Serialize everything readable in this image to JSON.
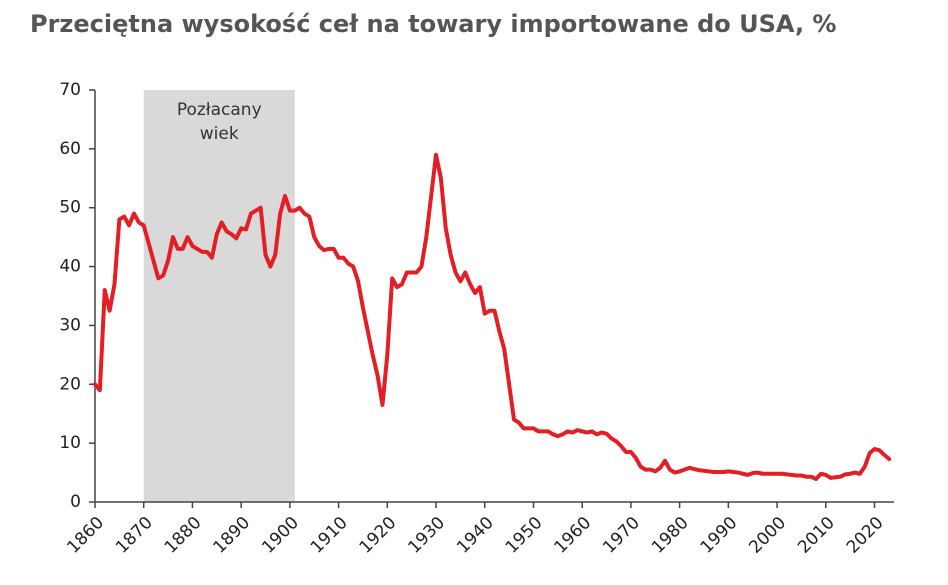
{
  "chart_data": {
    "type": "line",
    "title": "Przeciętna wysokość ceł na towary importowane do USA, %",
    "color": "#e31e24",
    "shaded_region": {
      "label": "Pozłacany wiek",
      "x": [
        1870,
        1901
      ],
      "color": "#d9d9d9"
    },
    "x": [
      1860,
      1861,
      1862,
      1863,
      1864,
      1865,
      1866,
      1867,
      1868,
      1869,
      1870,
      1871,
      1872,
      1873,
      1874,
      1875,
      1876,
      1877,
      1878,
      1879,
      1880,
      1881,
      1882,
      1883,
      1884,
      1885,
      1886,
      1887,
      1888,
      1889,
      1890,
      1891,
      1892,
      1893,
      1894,
      1895,
      1896,
      1897,
      1898,
      1899,
      1900,
      1901,
      1902,
      1903,
      1904,
      1905,
      1906,
      1907,
      1908,
      1909,
      1910,
      1911,
      1912,
      1913,
      1914,
      1915,
      1916,
      1917,
      1918,
      1919,
      1920,
      1921,
      1922,
      1923,
      1924,
      1925,
      1926,
      1927,
      1928,
      1929,
      1930,
      1931,
      1932,
      1933,
      1934,
      1935,
      1936,
      1937,
      1938,
      1939,
      1940,
      1941,
      1942,
      1943,
      1944,
      1945,
      1946,
      1947,
      1948,
      1949,
      1950,
      1951,
      1952,
      1953,
      1954,
      1955,
      1956,
      1957,
      1958,
      1959,
      1960,
      1961,
      1962,
      1963,
      1964,
      1965,
      1966,
      1967,
      1968,
      1969,
      1970,
      1971,
      1972,
      1973,
      1974,
      1975,
      1976,
      1977,
      1978,
      1979,
      1980,
      1981,
      1982,
      1983,
      1984,
      1985,
      1986,
      1987,
      1988,
      1989,
      1990,
      1991,
      1992,
      1993,
      1994,
      1995,
      1996,
      1997,
      1998,
      1999,
      2000,
      2001,
      2002,
      2003,
      2004,
      2005,
      2006,
      2007,
      2008,
      2009,
      2010,
      2011,
      2012,
      2013,
      2014,
      2015,
      2016,
      2017,
      2018,
      2019,
      2020,
      2021,
      2022,
      2023
    ],
    "values": [
      20,
      19,
      36,
      32.5,
      37,
      48,
      48.5,
      47,
      49,
      47.5,
      47,
      44,
      41,
      38,
      38.5,
      41,
      45,
      43,
      43,
      45,
      43.5,
      43,
      42.5,
      42.5,
      41.5,
      45.5,
      47.5,
      46,
      45.5,
      44.8,
      46.5,
      46.3,
      49,
      49.5,
      50,
      42,
      40,
      42,
      49,
      52,
      49.5,
      49.5,
      50,
      49,
      48.5,
      45,
      43.5,
      42.8,
      43,
      43,
      41.5,
      41.5,
      40.5,
      40,
      37.5,
      33,
      29,
      25,
      21.5,
      16.5,
      25,
      38,
      36.5,
      37,
      39,
      39,
      39,
      40,
      45,
      52,
      59,
      55,
      46.5,
      42,
      39,
      37.5,
      39,
      37,
      35.5,
      36.5,
      32,
      32.5,
      32.5,
      29,
      26,
      20,
      14,
      13.5,
      12.5,
      12.5,
      12.5,
      12,
      12,
      12,
      11.5,
      11.2,
      11.5,
      12,
      11.8,
      12.2,
      12,
      11.8,
      12,
      11.5,
      11.8,
      11.6,
      10.8,
      10.3,
      9.5,
      8.5,
      8.5,
      7.5,
      6,
      5.5,
      5.5,
      5.2,
      5.8,
      7,
      5.5,
      5,
      5.2,
      5.5,
      5.8,
      5.6,
      5.4,
      5.3,
      5.2,
      5.1,
      5.1,
      5.1,
      5.2,
      5.1,
      5,
      4.8,
      4.6,
      4.9,
      5,
      4.8,
      4.8,
      4.8,
      4.8,
      4.8,
      4.7,
      4.6,
      4.5,
      4.5,
      4.3,
      4.3,
      3.9,
      4.8,
      4.6,
      4.1,
      4.2,
      4.3,
      4.7,
      4.8,
      5,
      4.8,
      6,
      8.3,
      9,
      8.8,
      8,
      7.3
    ],
    "xlim": [
      1860,
      2024
    ],
    "xticks": [
      1860,
      1870,
      1880,
      1890,
      1900,
      1910,
      1920,
      1930,
      1940,
      1950,
      1960,
      1970,
      1980,
      1990,
      2000,
      2010,
      2020
    ],
    "ylim": [
      0,
      70
    ],
    "yticks": [
      0,
      10,
      20,
      30,
      40,
      50,
      60,
      70
    ],
    "grid": false
  }
}
